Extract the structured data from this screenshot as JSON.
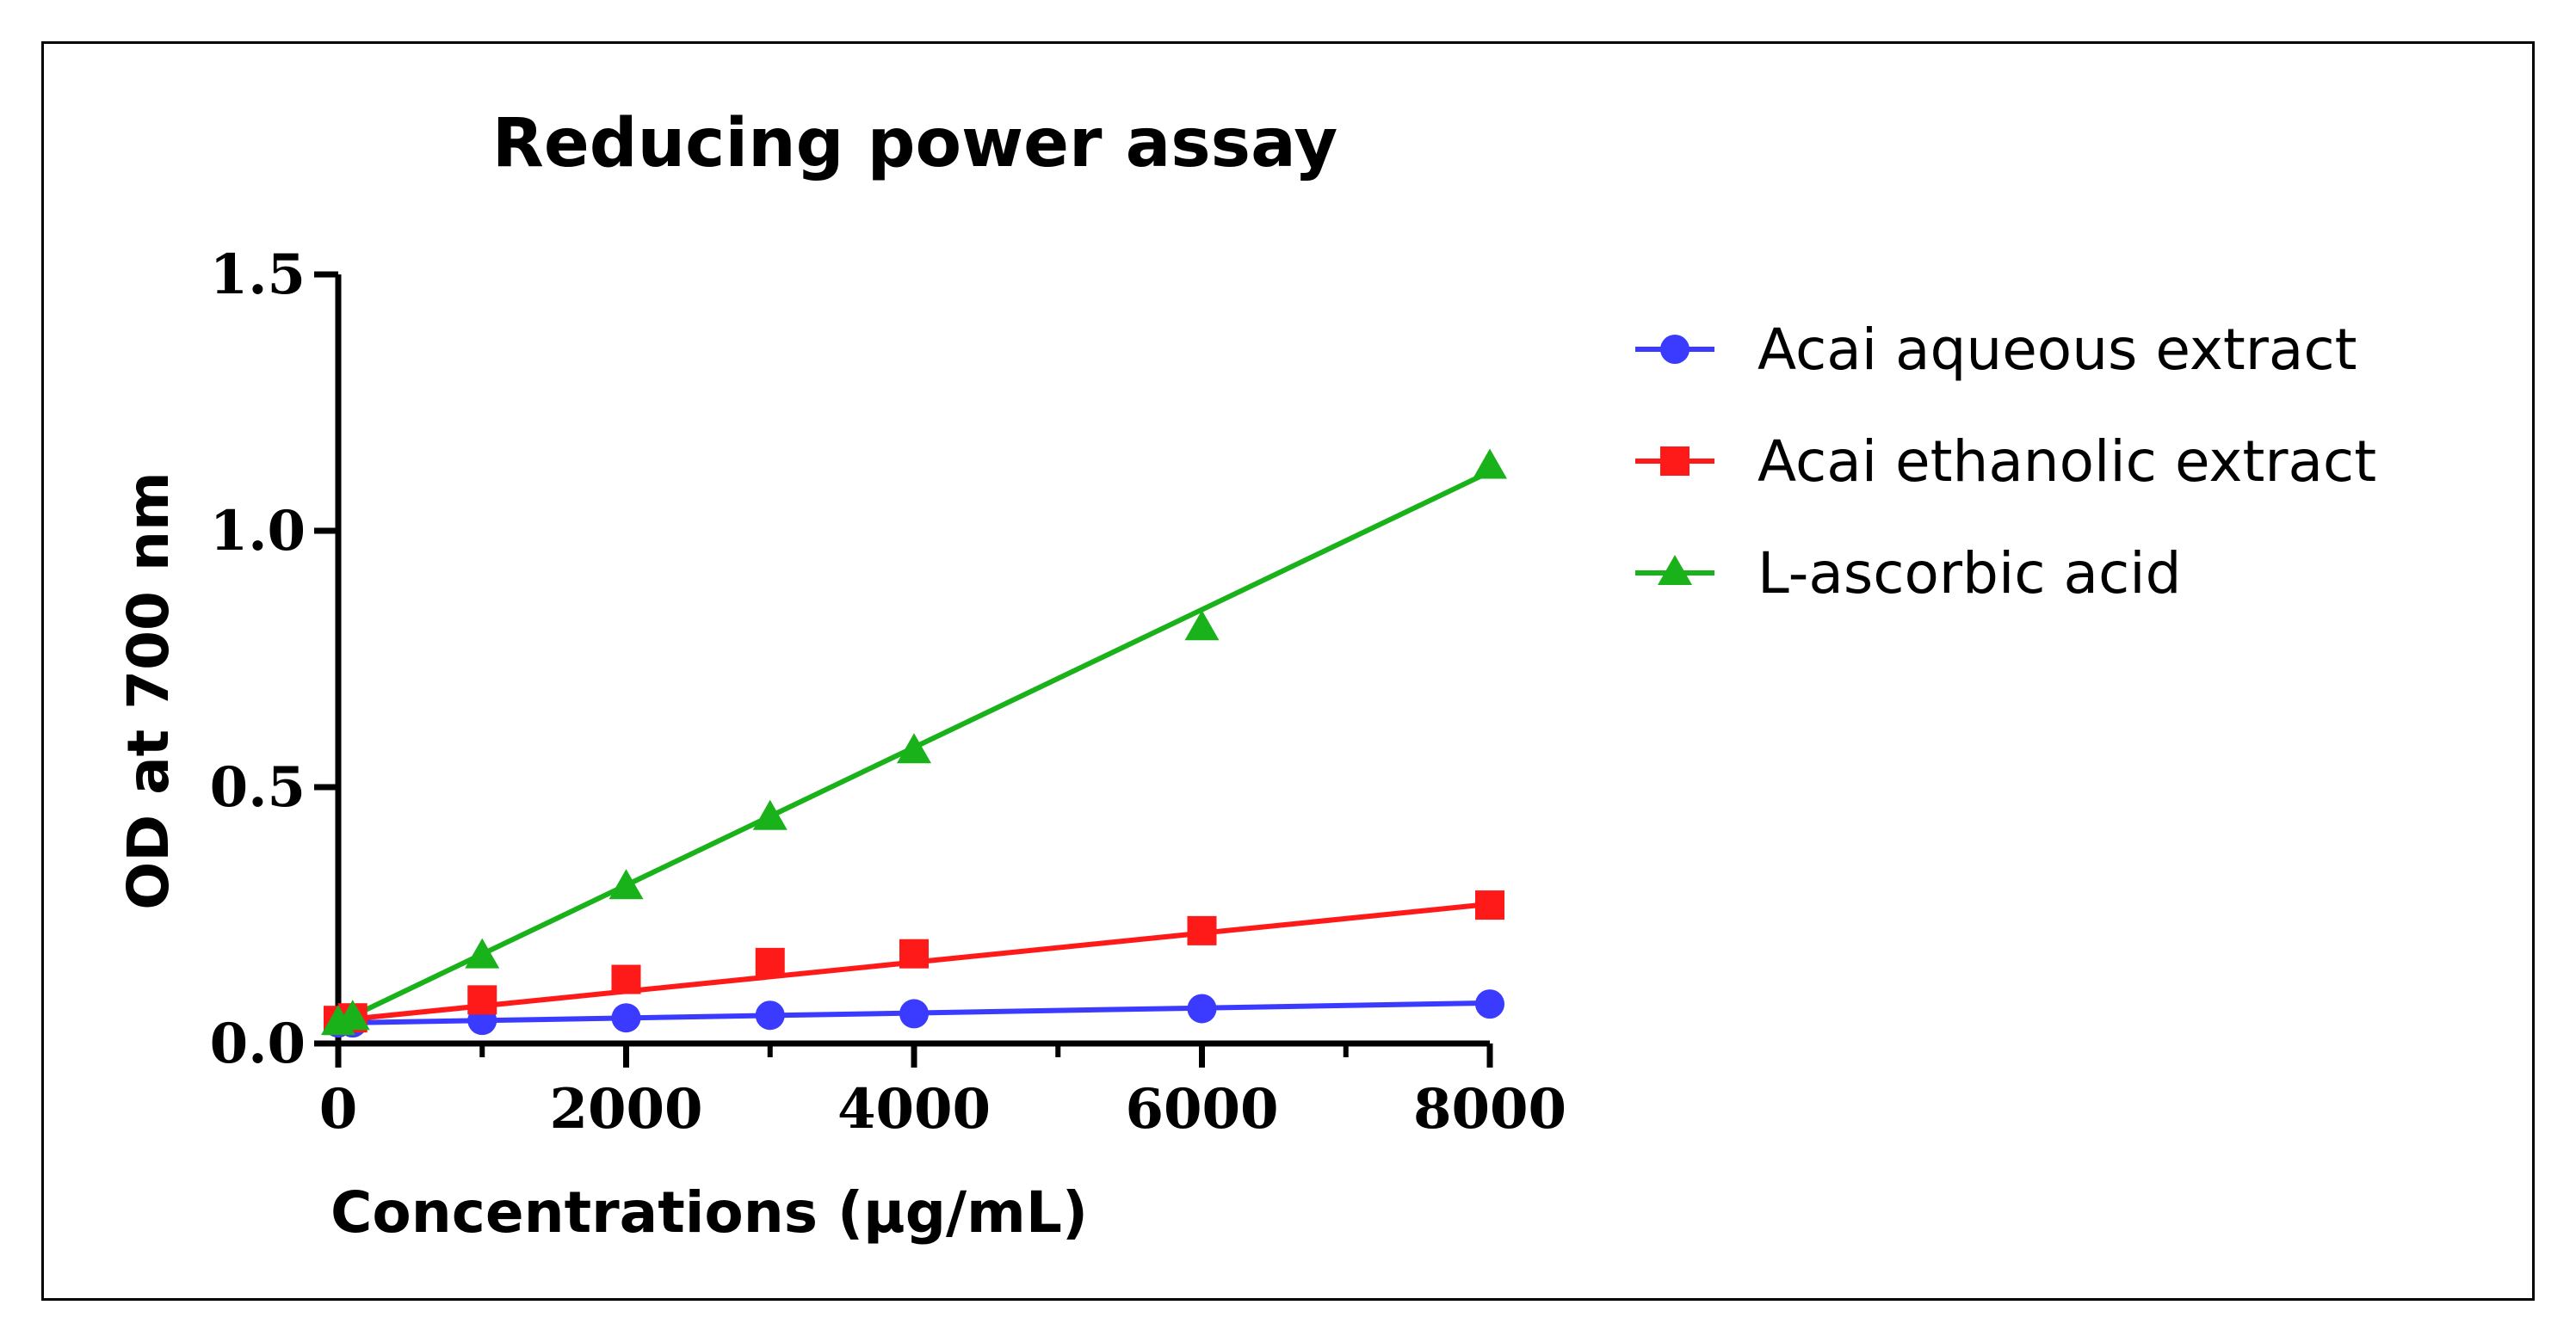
{
  "chart_data": {
    "type": "line",
    "title": "Reducing power assay",
    "xlabel": "Concentrations (μg/mL)",
    "ylabel": "OD at 700 nm",
    "xlim": [
      0,
      8000
    ],
    "ylim": [
      0,
      1.5
    ],
    "xticks": [
      "0",
      "2000",
      "4000",
      "6000",
      "8000"
    ],
    "yticks": [
      "0.0",
      "0.5",
      "1.0",
      "1.5"
    ],
    "legend_position": "right",
    "series": [
      {
        "name": "Acai aqueous extract",
        "marker": "circle",
        "color": "#3b3bff",
        "x": [
          0,
          100,
          1000,
          2000,
          3000,
          4000,
          6000,
          8000
        ],
        "y": [
          0.04,
          0.04,
          0.045,
          0.05,
          0.055,
          0.058,
          0.068,
          0.077
        ],
        "fit": [
          0.04,
          0.079
        ]
      },
      {
        "name": "Acai ethanolic  extract",
        "marker": "square",
        "color": "#ff1a1a",
        "x": [
          0,
          100,
          1000,
          2000,
          3000,
          4000,
          6000,
          8000
        ],
        "y": [
          0.045,
          0.05,
          0.085,
          0.125,
          0.158,
          0.175,
          0.22,
          0.27
        ],
        "fit": [
          0.045,
          0.272
        ]
      },
      {
        "name": "L-ascorbic acid",
        "marker": "triangle",
        "color": "#1ab21a",
        "x": [
          0,
          100,
          1000,
          2000,
          3000,
          4000,
          6000,
          8000
        ],
        "y": [
          0.04,
          0.05,
          0.17,
          0.305,
          0.44,
          0.57,
          0.81,
          1.125
        ],
        "fit": [
          0.04,
          1.115
        ]
      }
    ]
  }
}
